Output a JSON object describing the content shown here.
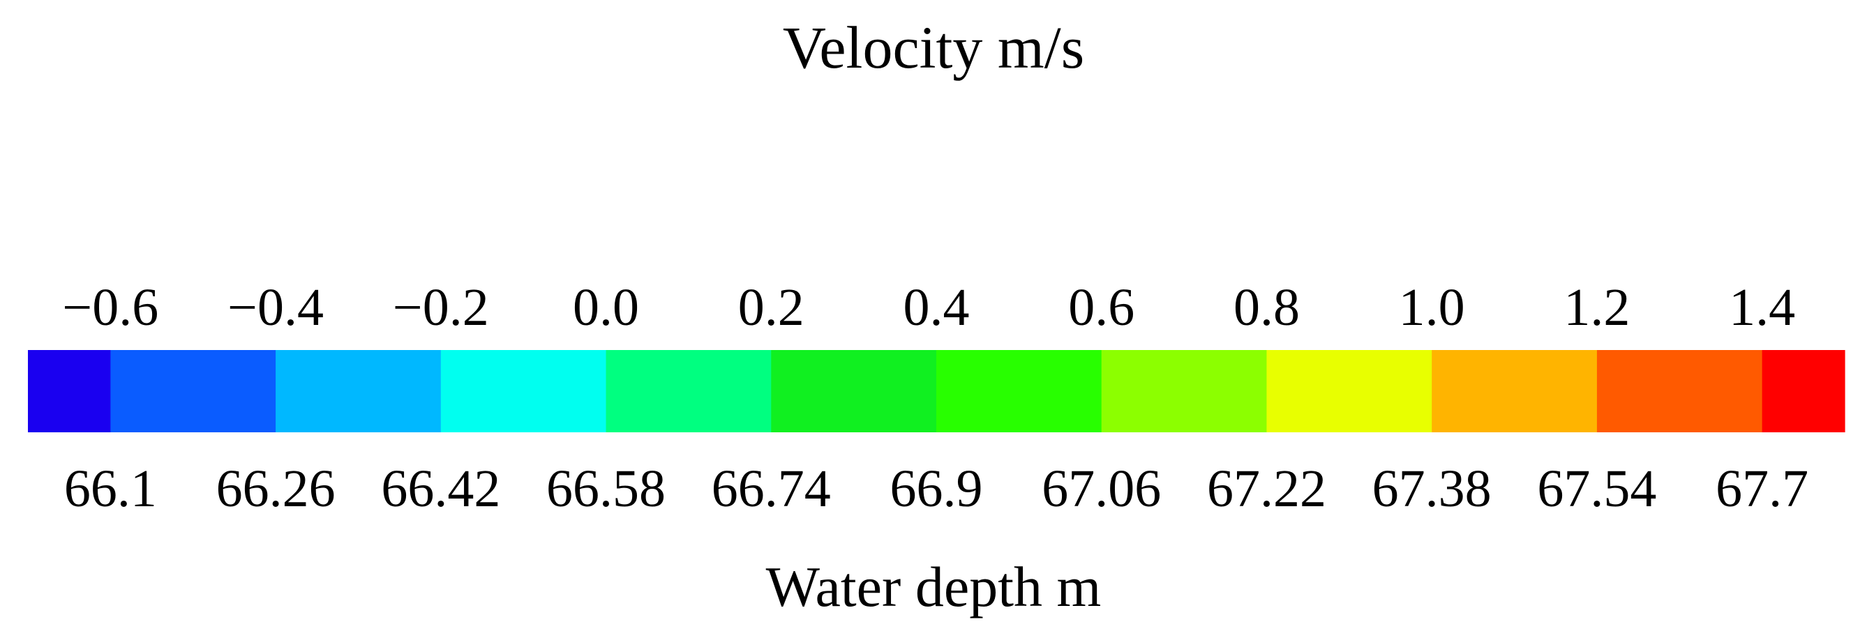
{
  "chart_data": {
    "type": "colorbar",
    "title": "Velocity m/s",
    "xlabel": "Water depth m",
    "top_ticks": [
      "−0.6",
      "−0.4",
      "−0.2",
      "0.0",
      "0.2",
      "0.4",
      "0.6",
      "0.8",
      "1.0",
      "1.2",
      "1.4"
    ],
    "top_values": [
      -0.6,
      -0.4,
      -0.2,
      0.0,
      0.2,
      0.4,
      0.6,
      0.8,
      1.0,
      1.2,
      1.4
    ],
    "bottom_ticks": [
      "66.1",
      "66.26",
      "66.42",
      "66.58",
      "66.74",
      "66.9",
      "67.06",
      "67.22",
      "67.38",
      "67.54",
      "67.7"
    ],
    "bottom_values": [
      66.1,
      66.26,
      66.42,
      66.58,
      66.74,
      66.9,
      67.06,
      67.22,
      67.38,
      67.54,
      67.7
    ],
    "range": [
      -0.7,
      1.5
    ],
    "colors": [
      "#1a00f0",
      "#0a5cff",
      "#00b8ff",
      "#00fff0",
      "#00ff80",
      "#10f020",
      "#28ff00",
      "#8cff00",
      "#e8ff00",
      "#ffb400",
      "#ff5a00",
      "#ff0000"
    ],
    "segment_bounds": [
      -0.7,
      -0.6,
      -0.4,
      -0.2,
      0.0,
      0.2,
      0.4,
      0.6,
      0.8,
      1.0,
      1.2,
      1.4,
      1.5
    ]
  }
}
